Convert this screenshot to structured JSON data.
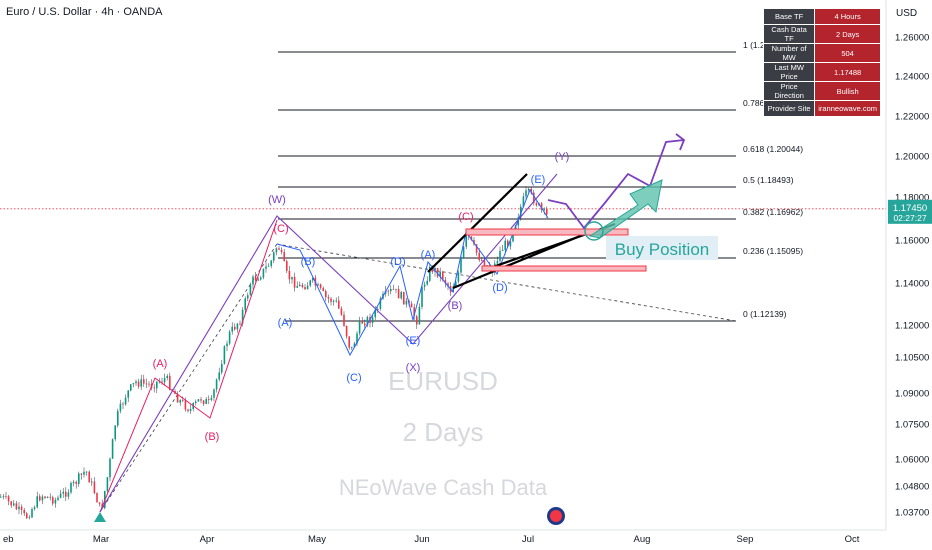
{
  "header": {
    "symbol_title": "Euro / U.S. Dollar · 4h · OANDA",
    "currency": "USD"
  },
  "info_table": [
    {
      "key": "Base TF",
      "value": "4 Hours"
    },
    {
      "key": "Cash Data TF",
      "value": "2 Days"
    },
    {
      "key": "Number of MW",
      "value": "504"
    },
    {
      "key": "Last MW Price",
      "value": "1.17488"
    },
    {
      "key": "Price Direction",
      "value": "Bullish"
    },
    {
      "key": "Provider Site",
      "value": "iranneowave.com"
    }
  ],
  "price_tag": {
    "value": "1.17450",
    "countdown": "02:27:27"
  },
  "watermark": [
    "EURUSD",
    "2 Days",
    "NEoWave Cash Data"
  ],
  "annotation": "Buy Position",
  "colors": {
    "up": "#089981",
    "down": "#f23645",
    "accent": "#26a69a",
    "purple": "#7b3fbf",
    "blue": "#2962ff",
    "pink": "#e91e63",
    "price_tag": "#26a69a"
  },
  "chart_data": {
    "type": "candlestick",
    "x_ticks": [
      "eb",
      "Mar",
      "Apr",
      "May",
      "Jun",
      "Jul",
      "Aug",
      "Sep",
      "Oct"
    ],
    "y_ticks": [
      1.037,
      1.048,
      1.06,
      1.075,
      1.09,
      1.105,
      1.12,
      1.14,
      1.16,
      1.18,
      1.2,
      1.22,
      1.24,
      1.26
    ],
    "last_price": 1.1745,
    "fib_levels": [
      {
        "ratio": 1,
        "label": "1 (1.2"
      },
      {
        "ratio": 0.786,
        "label": "0.786"
      },
      {
        "ratio": 0.618,
        "label": "0.618 (1.20044)"
      },
      {
        "ratio": 0.5,
        "label": "0.5 (1.18493)"
      },
      {
        "ratio": 0.382,
        "label": "0.382 (1.16962)"
      },
      {
        "ratio": 0.236,
        "label": "0.236 (1.15095)"
      },
      {
        "ratio": 0,
        "label": "0 (1.12139)"
      }
    ],
    "wave_labels": [
      {
        "text": "(A)",
        "color": "pink"
      },
      {
        "text": "(B)",
        "color": "pink"
      },
      {
        "text": "(C)",
        "color": "pink"
      },
      {
        "text": "(W)",
        "color": "purple"
      },
      {
        "text": "(X)",
        "color": "purple"
      },
      {
        "text": "(Y)",
        "color": "purple"
      },
      {
        "text": "(A)",
        "color": "blue"
      },
      {
        "text": "(B)",
        "color": "blue"
      },
      {
        "text": "(C)",
        "color": "blue"
      },
      {
        "text": "(D)",
        "color": "blue"
      },
      {
        "text": "(E)",
        "color": "blue"
      },
      {
        "text": "(A)",
        "color": "blue"
      },
      {
        "text": "(B)",
        "color": "purple"
      },
      {
        "text": "(C)",
        "color": "pink"
      },
      {
        "text": "(D)",
        "color": "blue"
      },
      {
        "text": "(E)",
        "color": "blue"
      }
    ]
  }
}
